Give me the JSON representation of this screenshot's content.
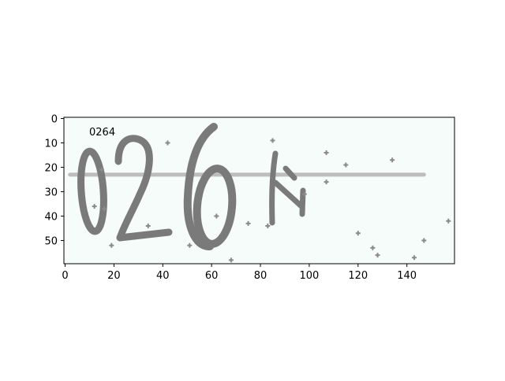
{
  "figure": {
    "annotation": "0264",
    "background_color": "#f5fcfa",
    "glyph_color": "#7a7a7a",
    "axis_color": "#000000"
  },
  "axes": {
    "x_ticks": [
      "0",
      "20",
      "40",
      "60",
      "80",
      "100",
      "120",
      "140"
    ],
    "y_ticks": [
      "0",
      "10",
      "20",
      "30",
      "40",
      "50"
    ],
    "x_range": [
      -0.5,
      159.5
    ],
    "y_range": [
      59.5,
      -0.5
    ]
  },
  "captcha": {
    "characters": [
      "0",
      "2",
      "6",
      "4"
    ],
    "strike_line": {
      "x_start": 2,
      "x_end": 147,
      "y": 23
    }
  }
}
